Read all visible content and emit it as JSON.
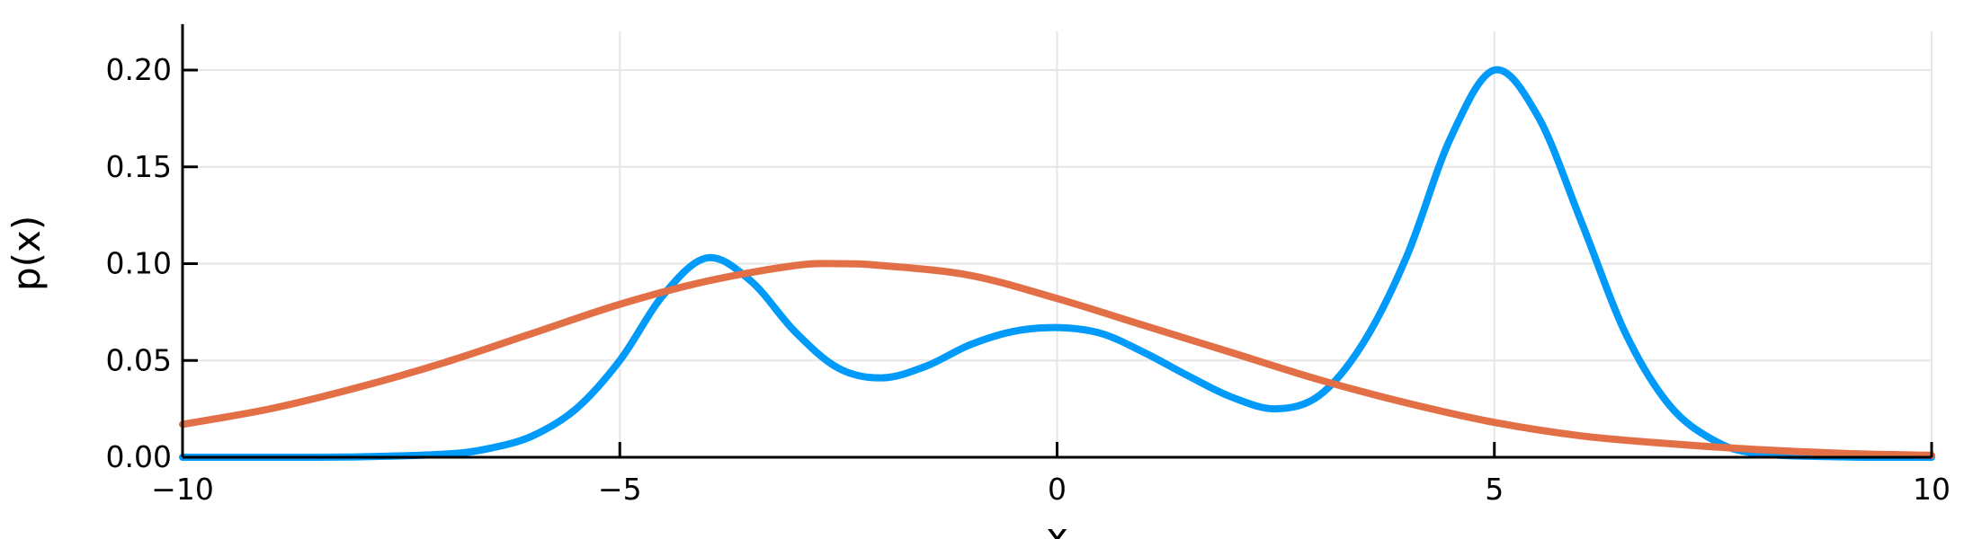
{
  "chart_data": {
    "type": "line",
    "title": "",
    "xlabel": "x",
    "ylabel": "p(x)",
    "xlim": [
      -10,
      10
    ],
    "ylim": [
      0,
      0.22
    ],
    "x_ticks": [
      -10,
      -5,
      0,
      5,
      10
    ],
    "x_tick_labels": [
      "−10",
      "−5",
      "0",
      "5",
      "10"
    ],
    "y_ticks": [
      0.0,
      0.05,
      0.1,
      0.15,
      0.2
    ],
    "y_tick_labels": [
      "0.00",
      "0.05",
      "0.10",
      "0.15",
      "0.20"
    ],
    "grid": true,
    "legend": "none",
    "series": [
      {
        "color": "#009AFA",
        "x": [
          -10,
          -9,
          -8,
          -7,
          -6.5,
          -6,
          -5.5,
          -5,
          -4.5,
          -4,
          -3.5,
          -3,
          -2.5,
          -2,
          -1.5,
          -1,
          -0.5,
          0,
          0.5,
          1,
          1.5,
          2,
          2.5,
          3,
          3.5,
          4,
          4.5,
          5,
          5.5,
          6,
          6.5,
          7,
          7.5,
          8,
          9,
          10
        ],
        "y": [
          0.0,
          0.0,
          0.0002,
          0.0016,
          0.0045,
          0.011,
          0.025,
          0.05,
          0.084,
          0.103,
          0.091,
          0.065,
          0.046,
          0.041,
          0.047,
          0.058,
          0.065,
          0.067,
          0.064,
          0.054,
          0.042,
          0.031,
          0.025,
          0.032,
          0.059,
          0.104,
          0.165,
          0.2,
          0.176,
          0.121,
          0.064,
          0.027,
          0.009,
          0.002,
          0.0002,
          0.0
        ]
      },
      {
        "color": "#E26F46",
        "x": [
          -10,
          -9,
          -8,
          -7,
          -6,
          -5,
          -4,
          -3,
          -2.5,
          -2,
          -1,
          0,
          1,
          2,
          3,
          4,
          5,
          6,
          7,
          8,
          9,
          10
        ],
        "y": [
          0.017,
          0.025,
          0.036,
          0.049,
          0.064,
          0.079,
          0.091,
          0.099,
          0.1,
          0.099,
          0.094,
          0.082,
          0.068,
          0.054,
          0.04,
          0.028,
          0.018,
          0.011,
          0.007,
          0.004,
          0.002,
          0.001
        ]
      }
    ]
  }
}
